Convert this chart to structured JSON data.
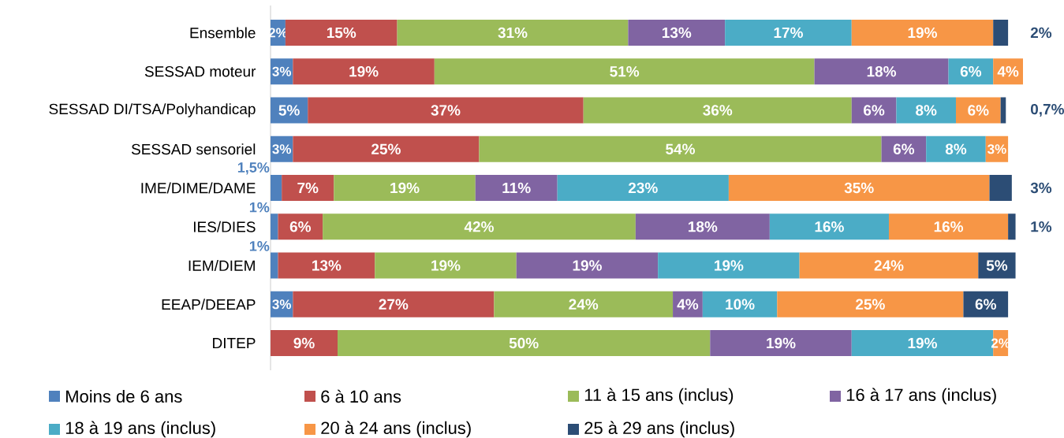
{
  "chart_data": {
    "type": "bar",
    "orientation": "horizontal",
    "stacked": true,
    "legend": "bottom",
    "categories": [
      "Ensemble",
      "SESSAD moteur",
      "SESSAD DI/TSA/Polyhandicap",
      "SESSAD sensoriel",
      "IME/DIME/DAME",
      "IES/DIES",
      "IEM/DIEM",
      "EEAP/DEEAP",
      "DITEP"
    ],
    "series": [
      {
        "name": "Moins de 6 ans",
        "color": "#4f81bd",
        "values": [
          2,
          3,
          5,
          3,
          1.5,
          1,
          1,
          3,
          null
        ],
        "value_labels": [
          "2%",
          "3%",
          "5%",
          "3%",
          "1,5%",
          "1%",
          "1%",
          "3%",
          null
        ]
      },
      {
        "name": "6 à 10 ans",
        "color": "#c0504d",
        "values": [
          15,
          19,
          37,
          25,
          7,
          6,
          13,
          27,
          9
        ],
        "value_labels": [
          "15%",
          "19%",
          "37%",
          "25%",
          "7%",
          "6%",
          "13%",
          "27%",
          "9%"
        ]
      },
      {
        "name": "11 à 15 ans (inclus)",
        "color": "#9bbb59",
        "values": [
          31,
          51,
          36,
          54,
          19,
          42,
          19,
          24,
          50
        ],
        "value_labels": [
          "31%",
          "51%",
          "36%",
          "54%",
          "19%",
          "42%",
          "19%",
          "24%",
          "50%"
        ]
      },
      {
        "name": "16 à 17 ans (inclus)",
        "color": "#8064a2",
        "values": [
          13,
          18,
          6,
          6,
          11,
          18,
          19,
          4,
          19
        ],
        "value_labels": [
          "13%",
          "18%",
          "6%",
          "6%",
          "11%",
          "18%",
          "19%",
          "4%",
          "19%"
        ]
      },
      {
        "name": "18 à 19 ans (inclus)",
        "color": "#4bacc6",
        "values": [
          17,
          6,
          8,
          8,
          23,
          16,
          19,
          10,
          19
        ],
        "value_labels": [
          "17%",
          "6%",
          "8%",
          "8%",
          "23%",
          "16%",
          "19%",
          "10%",
          "19%"
        ]
      },
      {
        "name": "20 à 24 ans (inclus)",
        "color": "#f79646",
        "values": [
          19,
          4,
          6,
          3,
          35,
          16,
          24,
          25,
          2
        ],
        "value_labels": [
          "19%",
          "4%",
          "6%",
          "3%",
          "35%",
          "16%",
          "24%",
          "25%",
          "2%"
        ]
      },
      {
        "name": "25 à 29 ans (inclus)",
        "color": "#2c4d75",
        "values": [
          2,
          null,
          0.7,
          null,
          3,
          1,
          5,
          6,
          null
        ],
        "value_labels": [
          "2%",
          null,
          "0,7%",
          null,
          "3%",
          "1%",
          "5%",
          "6%",
          null
        ]
      }
    ]
  }
}
